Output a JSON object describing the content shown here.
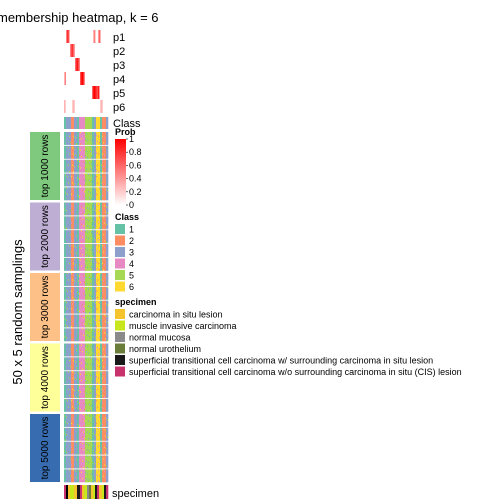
{
  "chart_data": {
    "type": "heatmap",
    "title": "membership heatmap, k = 6",
    "y_axis_label": "50 x 5 random samplings",
    "membership_rows": [
      "p1",
      "p2",
      "p3",
      "p4",
      "p5",
      "p6"
    ],
    "class_row_label": "Class",
    "specimen_row_label": "specimen",
    "row_groups": [
      {
        "label": "top 1000 rows",
        "color": "#7fc97f"
      },
      {
        "label": "top 2000 rows",
        "color": "#beaed4"
      },
      {
        "label": "top 3000 rows",
        "color": "#fdc086"
      },
      {
        "label": "top 4000 rows",
        "color": "#ffff99"
      },
      {
        "label": "top 5000 rows",
        "color": "#386cb0"
      }
    ],
    "prob_legend": {
      "title": "Prob",
      "ticks": [
        "1",
        "0.8",
        "0.6",
        "0.4",
        "0.2",
        "0"
      ],
      "colors": [
        "#ffffff",
        "#ff0000"
      ]
    },
    "class_legend": {
      "title": "Class",
      "items": [
        {
          "label": "1",
          "color": "#66c2a5"
        },
        {
          "label": "2",
          "color": "#fc8d62"
        },
        {
          "label": "3",
          "color": "#8da0cb"
        },
        {
          "label": "4",
          "color": "#e78ac3"
        },
        {
          "label": "5",
          "color": "#a6d854"
        },
        {
          "label": "6",
          "color": "#ffd92f"
        }
      ]
    },
    "specimen_legend": {
      "title": "specimen",
      "items": [
        {
          "label": "carcinoma in situ lesion",
          "color": "#f5c32c"
        },
        {
          "label": "muscle invasive carcinoma",
          "color": "#c7e61c"
        },
        {
          "label": "normal mucosa",
          "color": "#8a8a8a"
        },
        {
          "label": "normal urothelium",
          "color": "#6b7d3b"
        },
        {
          "label": "superficial transitional cell carcinoma w/ surrounding carcinoma in situ lesion",
          "color": "#1a1a1a"
        },
        {
          "label": "superficial transitional cell carcinoma w/o surrounding carcinoma in situ (CIS) lesion",
          "color": "#c8336e"
        }
      ]
    },
    "column_classes": [
      1,
      1,
      3,
      3,
      3,
      3,
      3,
      2,
      2,
      2,
      3,
      3,
      3,
      1,
      1,
      4,
      4,
      4,
      4,
      4,
      4,
      5,
      5,
      5,
      5,
      5,
      5,
      5,
      1,
      1,
      3,
      3,
      6,
      6,
      6,
      6,
      1,
      1,
      2,
      2,
      2,
      2,
      3,
      3
    ],
    "membership": {
      "p1": [
        0,
        0,
        0.5,
        0.8,
        0.7,
        0.3,
        0,
        0,
        0,
        0,
        0,
        0,
        0,
        0,
        0,
        0,
        0,
        0,
        0,
        0,
        0,
        0,
        0,
        0,
        0,
        0,
        0,
        0,
        0,
        0.3,
        0.5,
        0.2,
        0,
        0,
        0.4,
        0.6,
        0.3,
        0,
        0,
        0,
        0,
        0,
        0,
        0
      ],
      "p2": [
        0,
        0,
        0,
        0,
        0,
        0,
        0.5,
        0.7,
        0.8,
        0.6,
        0.4,
        0,
        0,
        0,
        0,
        0,
        0,
        0,
        0,
        0,
        0,
        0,
        0,
        0,
        0,
        0,
        0,
        0,
        0,
        0,
        0,
        0,
        0,
        0,
        0,
        0,
        0,
        0,
        0,
        0,
        0,
        0,
        0,
        0
      ],
      "p3": [
        0,
        0,
        0,
        0,
        0,
        0,
        0,
        0,
        0,
        0,
        0,
        0.6,
        0.8,
        0.9,
        0.7,
        0.5,
        0,
        0,
        0,
        0,
        0,
        0,
        0,
        0,
        0,
        0,
        0,
        0,
        0,
        0,
        0,
        0,
        0,
        0,
        0,
        0,
        0,
        0,
        0,
        0,
        0,
        0,
        0,
        0
      ],
      "p4": [
        0.3,
        0.5,
        0,
        0,
        0,
        0,
        0,
        0,
        0,
        0,
        0,
        0,
        0,
        0,
        0,
        0,
        0.7,
        0.9,
        1,
        0.8,
        0.5,
        0,
        0,
        0,
        0,
        0,
        0,
        0,
        0,
        0,
        0,
        0,
        0,
        0,
        0,
        0,
        0,
        0,
        0,
        0,
        0,
        0,
        0,
        0
      ],
      "p5": [
        0,
        0,
        0,
        0,
        0,
        0,
        0,
        0,
        0,
        0,
        0,
        0,
        0,
        0,
        0,
        0,
        0,
        0,
        0,
        0,
        0,
        0,
        0,
        0,
        0,
        0,
        0,
        0,
        0.6,
        0.9,
        1,
        0.9,
        0.8,
        0.7,
        0.9,
        0.4,
        0,
        0,
        0,
        0,
        0,
        0,
        0,
        0
      ],
      "p6": [
        0.3,
        0.2,
        0,
        0,
        0,
        0,
        0,
        0,
        0.2,
        0.3,
        0.2,
        0,
        0,
        0,
        0,
        0,
        0,
        0,
        0,
        0,
        0,
        0,
        0,
        0,
        0,
        0,
        0,
        0,
        0,
        0,
        0,
        0,
        0,
        0,
        0,
        0,
        0.2,
        0.3,
        0.2,
        0,
        0,
        0,
        0,
        0
      ]
    },
    "specimen_bar": [
      5,
      5,
      6,
      6,
      0,
      0,
      1,
      1,
      1,
      1,
      0,
      0,
      0,
      4,
      4,
      4,
      5,
      5,
      0,
      0,
      1,
      1,
      1,
      2,
      2,
      3,
      3,
      0,
      0,
      1,
      1,
      4,
      4,
      5,
      5,
      0,
      0,
      0,
      1,
      1,
      4,
      4,
      5,
      5
    ]
  }
}
